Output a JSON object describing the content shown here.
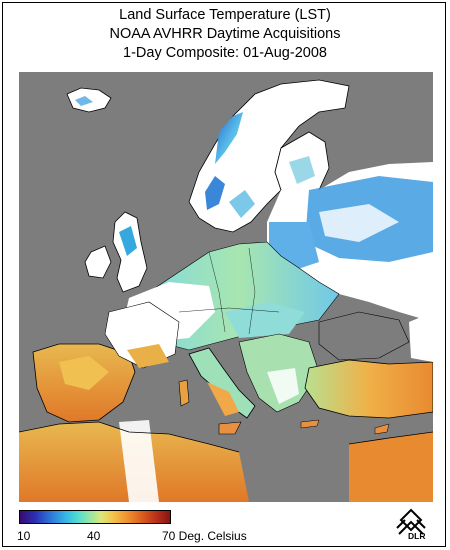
{
  "title": {
    "line1": "Land Surface Temperature (LST)",
    "line2": "NOAA AVHRR Daytime Acquisitions",
    "line3": "1-Day Composite: 01-Aug-2008"
  },
  "legend": {
    "min_label": "10",
    "mid_label": "40",
    "max_label": "70 Deg. Celsius",
    "min_value": 10,
    "mid_value": 40,
    "max_value": 70,
    "colors": [
      "#3a0a6e",
      "#2a2fb5",
      "#35b3e6",
      "#8fe6a8",
      "#f2c34a",
      "#d85a1e",
      "#8a1410"
    ]
  },
  "logo": {
    "text": "DLR"
  },
  "map_colors": {
    "sea": "#7d7d7d",
    "cloud_no_data": "#ffffff",
    "cool": "#6fd4e8",
    "mild": "#9fe6b0",
    "warm": "#f0a040",
    "hot": "#e07828"
  }
}
